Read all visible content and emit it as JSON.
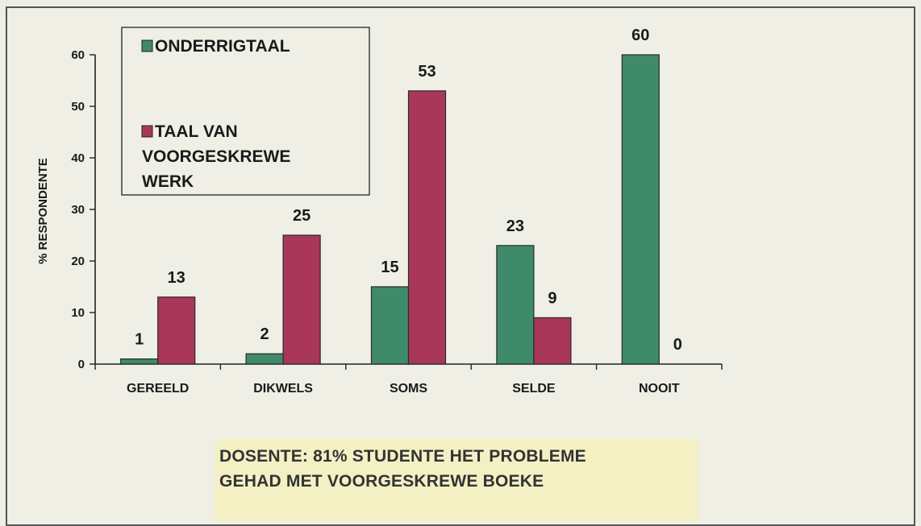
{
  "chart_data": {
    "type": "bar",
    "categories": [
      "GEREELD",
      "DIKWELS",
      "SOMS",
      "SELDE",
      "NOOIT"
    ],
    "series": [
      {
        "name": "ONDERRIGTAAL",
        "values": [
          1,
          2,
          15,
          23,
          60
        ],
        "color": "#3f8a6b"
      },
      {
        "name": "TAAL VAN VOORGESKREWE WERK",
        "values": [
          13,
          25,
          53,
          9,
          0
        ],
        "color": "#a8375a"
      }
    ],
    "legend_lines": [
      [
        "ONDERRIGTAAL"
      ],
      [
        "TAAL VAN",
        "VOORGESKREWE",
        "WERK"
      ]
    ],
    "ylabel": "% RESPONDENTE",
    "yticks": [
      0,
      10,
      20,
      30,
      40,
      50,
      60
    ],
    "ylim": [
      0,
      60
    ],
    "legend_position": "top-left",
    "grid": false
  },
  "caption": {
    "line1": "DOSENTE: 81% STUDENTE HET PROBLEME",
    "line2": "GEHAD MET VOORGESKREWE BOEKE"
  }
}
